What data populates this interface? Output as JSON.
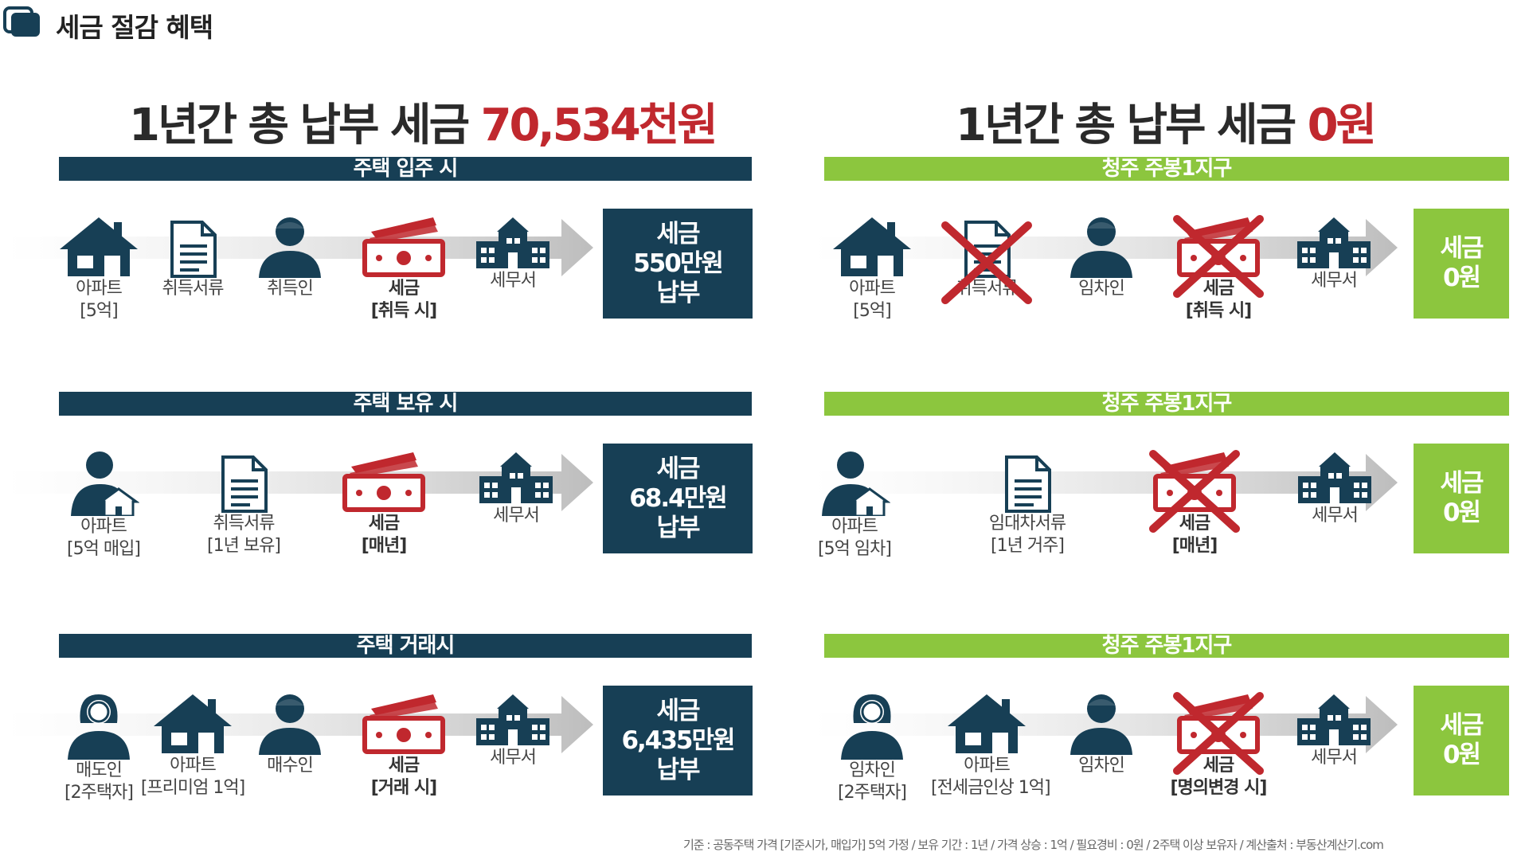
{
  "header": {
    "title": "세금 절감 혜택"
  },
  "left": {
    "title_prefix": "1년간 총 납부 세금 ",
    "title_amount": "70,534천원",
    "rows": [
      {
        "band": "주택 입주 시",
        "items": [
          {
            "icon": "house-icon",
            "lines": [
              "아파트",
              "[5억]"
            ]
          },
          {
            "icon": "document-icon",
            "lines": [
              "취득서류"
            ]
          },
          {
            "icon": "person-icon",
            "lines": [
              "취득인"
            ]
          },
          {
            "icon": "money-icon",
            "lines": [
              "세금",
              "[취득 시]"
            ]
          },
          {
            "icon": "tax-office-icon",
            "lines": [
              "세무서"
            ]
          }
        ],
        "result": [
          "세금",
          "550만원",
          "납부"
        ]
      },
      {
        "band": "주택 보유 시",
        "items": [
          {
            "icon": "person-house-icon",
            "lines": [
              "아파트",
              "[5억 매입]"
            ]
          },
          {
            "icon": "document-icon",
            "lines": [
              "취득서류",
              "[1년 보유]"
            ]
          },
          {
            "icon": "money-icon",
            "lines": [
              "세금",
              "[매년]"
            ]
          },
          {
            "icon": "tax-office-icon",
            "lines": [
              "세무서"
            ]
          }
        ],
        "result": [
          "세금",
          "68.4만원",
          "납부"
        ]
      },
      {
        "band": "주택 거래시",
        "items": [
          {
            "icon": "woman-icon",
            "lines": [
              "매도인",
              "[2주택자]"
            ]
          },
          {
            "icon": "house-icon",
            "lines": [
              "아파트",
              "[프리미엄 1억]"
            ]
          },
          {
            "icon": "person-icon",
            "lines": [
              "매수인"
            ]
          },
          {
            "icon": "money-icon",
            "lines": [
              "세금",
              "[거래 시]"
            ]
          },
          {
            "icon": "tax-office-icon",
            "lines": [
              "세무서"
            ]
          }
        ],
        "result": [
          "세금",
          "6,435만원",
          "납부"
        ]
      }
    ]
  },
  "right": {
    "title_prefix": "1년간 총 납부 세금 ",
    "title_amount": "0원",
    "rows": [
      {
        "band": "청주 주봉1지구",
        "items": [
          {
            "icon": "house-icon",
            "lines": [
              "아파트",
              "[5억]"
            ]
          },
          {
            "icon": "document-icon",
            "lines": [
              "취득서류"
            ],
            "crossed": true
          },
          {
            "icon": "person-icon",
            "lines": [
              "임차인"
            ]
          },
          {
            "icon": "money-icon",
            "lines": [
              "세금",
              "[취득 시]"
            ],
            "crossed": true
          },
          {
            "icon": "tax-office-icon",
            "lines": [
              "세무서"
            ]
          }
        ],
        "result": [
          "세금",
          "0원"
        ]
      },
      {
        "band": "청주 주봉1지구",
        "items": [
          {
            "icon": "person-house-icon",
            "lines": [
              "아파트",
              "[5억 임차]"
            ]
          },
          {
            "icon": "document-icon",
            "lines": [
              "임대차서류",
              "[1년 거주]"
            ]
          },
          {
            "icon": "money-icon",
            "lines": [
              "세금",
              "[매년]"
            ],
            "crossed": true
          },
          {
            "icon": "tax-office-icon",
            "lines": [
              "세무서"
            ]
          }
        ],
        "result": [
          "세금",
          "0원"
        ]
      },
      {
        "band": "청주 주봉1지구",
        "items": [
          {
            "icon": "woman-icon",
            "lines": [
              "임차인",
              "[2주택자]"
            ]
          },
          {
            "icon": "house-icon",
            "lines": [
              "아파트",
              "[전세금인상 1억]"
            ]
          },
          {
            "icon": "person-icon",
            "lines": [
              "임차인"
            ]
          },
          {
            "icon": "money-icon",
            "lines": [
              "세금",
              "[명의변경 시]"
            ],
            "crossed": true
          },
          {
            "icon": "tax-office-icon",
            "lines": [
              "세무서"
            ]
          }
        ],
        "result": [
          "세금",
          "0원"
        ]
      }
    ]
  },
  "footnote": "기준 : 공동주택 가격 [기준시가, 매입가] 5억 가정 / 보유 기간 : 1년 / 가격 상승 : 1억 / 필요경비 : 0원 / 2주택 이상 보유자 / 계산출처 : 부동산계산기.com",
  "colors": {
    "navy": "#173f55",
    "green": "#8cc63e",
    "red": "#c0282e"
  }
}
